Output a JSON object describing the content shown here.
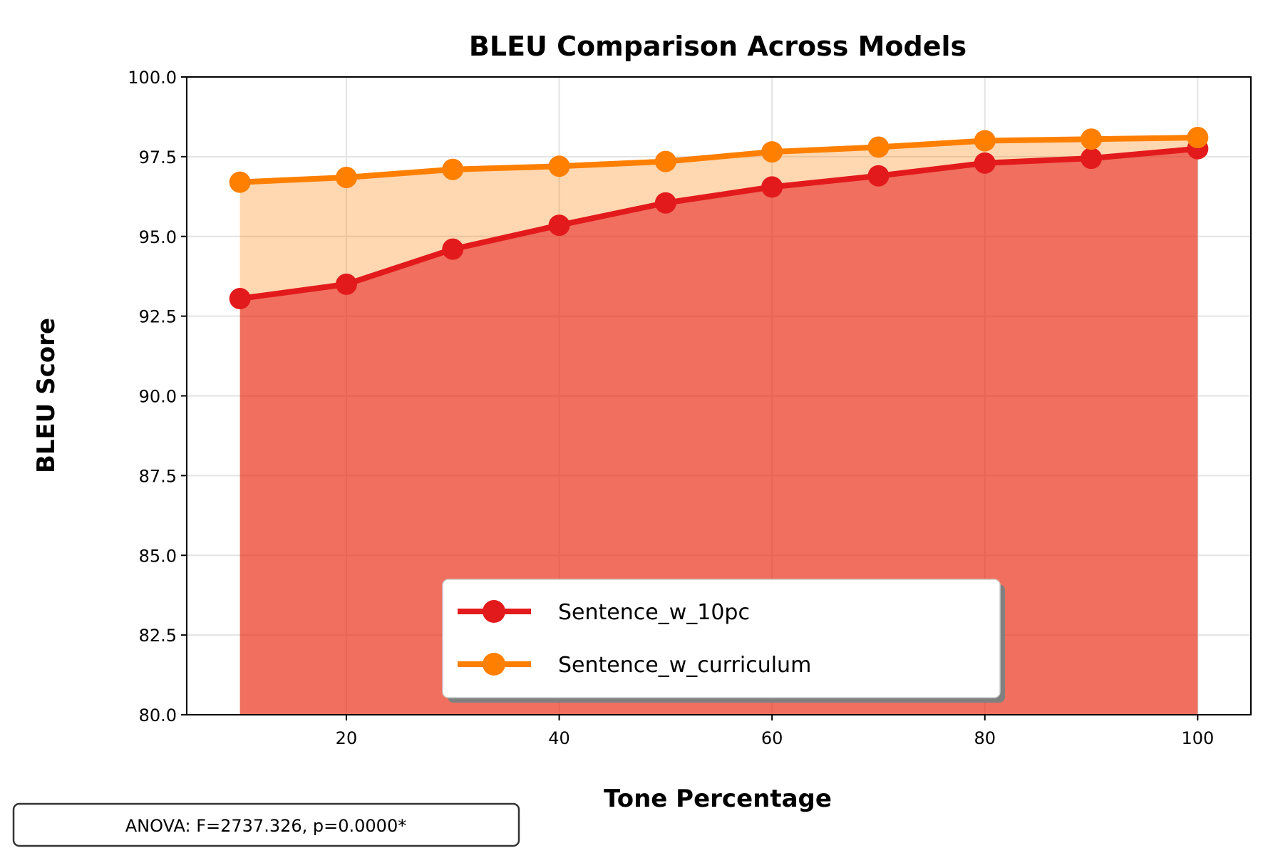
{
  "chart_data": {
    "type": "line",
    "title": "BLEU Comparison Across Models",
    "xlabel": "Tone Percentage",
    "ylabel": "BLEU Score",
    "x": [
      10,
      20,
      30,
      40,
      50,
      60,
      70,
      80,
      90,
      100
    ],
    "xlim": [
      5,
      105
    ],
    "ylim": [
      80,
      100
    ],
    "xticks": [
      20,
      40,
      60,
      80,
      100
    ],
    "xtick_labels": [
      "20",
      "40",
      "60",
      "80",
      "100"
    ],
    "yticks": [
      80,
      82.5,
      85,
      87.5,
      90,
      92.5,
      95,
      97.5,
      100
    ],
    "ytick_labels": [
      "80.0",
      "82.5",
      "85.0",
      "87.5",
      "90.0",
      "92.5",
      "95.0",
      "97.5",
      "100.0"
    ],
    "grid": true,
    "area_fill": true,
    "legend_position": "lower-center",
    "series": [
      {
        "name": "Sentence_w_10pc",
        "color": "#e31a1c",
        "values": [
          93.05,
          93.5,
          94.6,
          95.35,
          96.05,
          96.55,
          96.9,
          97.3,
          97.45,
          97.75
        ]
      },
      {
        "name": "Sentence_w_curriculum",
        "color": "#ff7f00",
        "values": [
          96.7,
          96.85,
          97.1,
          97.2,
          97.35,
          97.65,
          97.8,
          98.0,
          98.05,
          98.1
        ]
      }
    ],
    "annotation": "ANOVA: F=2737.326, p=0.0000*"
  }
}
